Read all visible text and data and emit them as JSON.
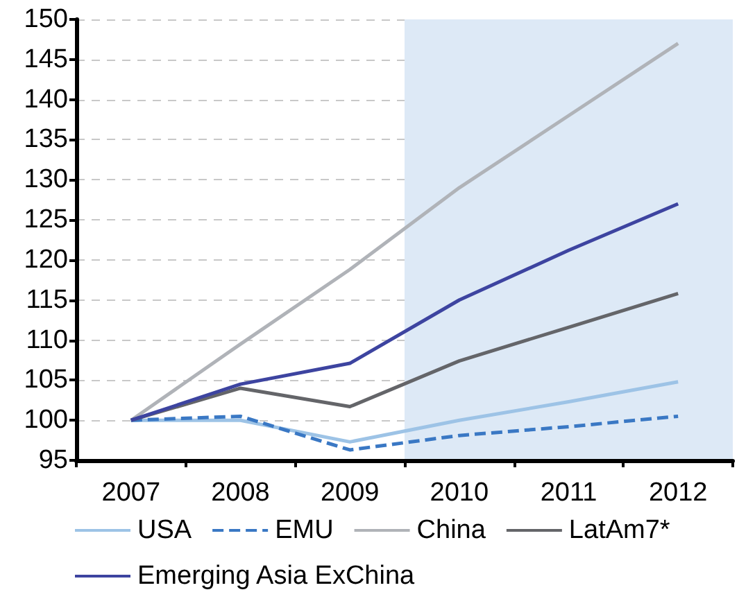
{
  "chart_data": {
    "type": "line",
    "x": [
      2007,
      2008,
      2009,
      2010,
      2011,
      2012
    ],
    "series": [
      {
        "name": "USA",
        "color": "#9dc3e6",
        "values": [
          100,
          100,
          97.3,
          100,
          102.3,
          104.8
        ]
      },
      {
        "name": "EMU",
        "color": "#3a78c4",
        "values": [
          100,
          100.5,
          96.3,
          98.1,
          99.2,
          100.5
        ],
        "line_style": "dashed"
      },
      {
        "name": "China",
        "color": "#b0b3b8",
        "values": [
          100,
          109.5,
          118.8,
          129,
          138,
          147
        ]
      },
      {
        "name": "LatAm7*",
        "color": "#646569",
        "values": [
          100,
          104,
          101.7,
          107.4,
          111.6,
          115.8
        ]
      },
      {
        "name": "Emerging Asia ExChina",
        "color": "#3d44a0",
        "values": [
          100,
          104.5,
          107.1,
          115,
          121.2,
          127
        ]
      }
    ],
    "xlim": [
      2006.5,
      2012.5
    ],
    "xticks": [
      {
        "value": 2006.5,
        "label": null
      },
      {
        "value": 2007,
        "label": "2007"
      },
      {
        "value": 2007.5,
        "label": null
      },
      {
        "value": 2008,
        "label": "2008"
      },
      {
        "value": 2008.5,
        "label": null
      },
      {
        "value": 2009,
        "label": "2009"
      },
      {
        "value": 2009.5,
        "label": null
      },
      {
        "value": 2010,
        "label": "2010"
      },
      {
        "value": 2010.5,
        "label": null
      },
      {
        "value": 2011,
        "label": "2011"
      },
      {
        "value": 2011.5,
        "label": null
      },
      {
        "value": 2012,
        "label": "2012"
      },
      {
        "value": 2012.5,
        "label": null
      }
    ],
    "ylim": [
      95,
      150
    ],
    "yticks": [
      95,
      100,
      105,
      110,
      115,
      120,
      125,
      130,
      135,
      140,
      145,
      150
    ],
    "grid": "y",
    "legend": "bottom",
    "marker": "none",
    "line_style": "solid",
    "bands": [
      {
        "axis": "x",
        "from": 2009.5,
        "to": 2012.5,
        "color": "#dde9f6"
      }
    ]
  }
}
